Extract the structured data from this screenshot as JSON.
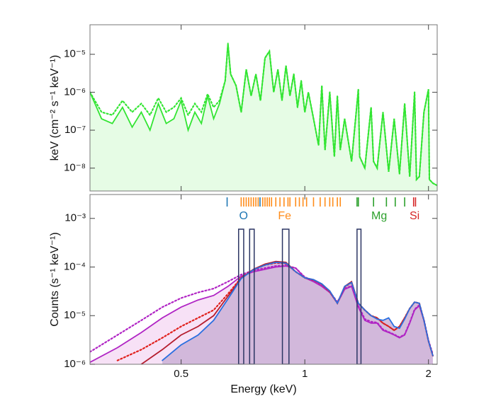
{
  "chart_data": [
    {
      "type": "line",
      "ylabel": "keV (cm⁻² s⁻¹ keV⁻¹)",
      "xscale": "log",
      "yscale": "log",
      "xlim": [
        0.3,
        2.1
      ],
      "ylim": [
        2.5e-09,
        6e-05
      ],
      "yticks": [
        {
          "value": 1e-08,
          "label": "10⁻⁸"
        },
        {
          "value": 1e-07,
          "label": "10⁻⁷"
        },
        {
          "value": 1e-06,
          "label": "10⁻⁶"
        },
        {
          "value": 1e-05,
          "label": "10⁻⁵"
        }
      ],
      "x": [
        0.3,
        0.32,
        0.34,
        0.36,
        0.38,
        0.4,
        0.42,
        0.44,
        0.46,
        0.48,
        0.5,
        0.52,
        0.54,
        0.56,
        0.58,
        0.6,
        0.62,
        0.64,
        0.65,
        0.66,
        0.68,
        0.7,
        0.72,
        0.74,
        0.76,
        0.78,
        0.8,
        0.82,
        0.84,
        0.86,
        0.88,
        0.9,
        0.92,
        0.94,
        0.96,
        0.98,
        1.0,
        1.02,
        1.05,
        1.08,
        1.1,
        1.12,
        1.15,
        1.18,
        1.2,
        1.22,
        1.25,
        1.3,
        1.35,
        1.36,
        1.4,
        1.45,
        1.47,
        1.5,
        1.55,
        1.6,
        1.65,
        1.7,
        1.75,
        1.8,
        1.85,
        1.87,
        1.9,
        1.95,
        2.0,
        2.01,
        2.05,
        2.1
      ],
      "series": [
        {
          "color": "#33e533",
          "style": "solid",
          "fill": "#e2fbe0",
          "values": [
            1e-06,
            2e-07,
            1.5e-07,
            4e-07,
            1.2e-07,
            3e-07,
            1e-07,
            5e-07,
            1.5e-07,
            2e-07,
            6e-07,
            1e-07,
            3e-07,
            1.5e-07,
            8e-07,
            2e-07,
            5e-07,
            2e-06,
            2e-05,
            3e-06,
            1.5e-06,
            3e-07,
            4e-06,
            8e-07,
            3e-06,
            6e-07,
            8e-06,
            1.2e-05,
            1e-06,
            4e-06,
            6e-07,
            5e-06,
            8e-07,
            3e-06,
            4e-07,
            2e-06,
            3e-07,
            1e-06,
            2e-07,
            4e-08,
            1.5e-06,
            3e-08,
            1e-06,
            2e-08,
            8e-07,
            3e-08,
            2e-07,
            1.5e-08,
            1.2e-06,
            2e-08,
            1e-08,
            4e-07,
            1.5e-08,
            1e-08,
            3e-07,
            8e-09,
            2e-07,
            7e-09,
            5e-07,
            6e-09,
            1e-06,
            5e-09,
            6e-09,
            3e-07,
            1.2e-06,
            5e-09,
            4e-09,
            3.5e-09
          ]
        },
        {
          "color": "#33e533",
          "style": "dotted",
          "values": [
            1e-06,
            3e-07,
            2.5e-07,
            6e-07,
            3e-07,
            5e-07,
            2.5e-07,
            7e-07,
            3e-07,
            4e-07,
            7e-07,
            2.5e-07,
            5e-07,
            3e-07,
            9e-07,
            4e-07,
            6e-07,
            2e-06,
            1.8e-05,
            3e-06,
            1.5e-06,
            3e-07,
            4e-06,
            8e-07,
            3e-06,
            6e-07,
            8e-06,
            1.2e-05,
            1e-06,
            4e-06,
            6e-07,
            5e-06,
            8e-07,
            3e-06,
            4e-07,
            2e-06,
            3e-07,
            1e-06,
            2e-07,
            4e-08,
            1.5e-06,
            3e-08,
            1e-06,
            2e-08,
            8e-07,
            3e-08,
            2e-07,
            1.5e-08,
            1.2e-06,
            2e-08,
            1e-08,
            4e-07,
            1.5e-08,
            1e-08,
            3e-07,
            8e-09,
            2e-07,
            7e-09,
            5e-07,
            6e-09,
            1e-06,
            5e-09,
            6e-09,
            3e-07,
            1.2e-06,
            5e-09,
            4e-09,
            3.5e-09
          ]
        }
      ]
    },
    {
      "type": "line",
      "xlabel": "Energy (keV)",
      "ylabel": "Counts (s⁻¹ keV⁻¹)",
      "xscale": "log",
      "yscale": "log",
      "xlim": [
        0.3,
        2.1
      ],
      "ylim": [
        1e-06,
        0.0031
      ],
      "xticks": [
        0.5,
        1,
        2
      ],
      "yticks": [
        {
          "value": 1e-06,
          "label": "10⁻⁶"
        },
        {
          "value": 1e-05,
          "label": "10⁻⁵"
        },
        {
          "value": 0.0001,
          "label": "10⁻⁴"
        },
        {
          "value": 0.001,
          "label": "10⁻³"
        }
      ],
      "x": [
        0.3,
        0.35,
        0.4,
        0.45,
        0.5,
        0.55,
        0.6,
        0.65,
        0.7,
        0.75,
        0.8,
        0.85,
        0.9,
        0.95,
        1.0,
        1.05,
        1.1,
        1.15,
        1.2,
        1.25,
        1.3,
        1.35,
        1.4,
        1.45,
        1.5,
        1.55,
        1.6,
        1.65,
        1.7,
        1.75,
        1.8,
        1.85,
        1.9,
        1.95,
        2.0,
        2.05
      ],
      "series": [
        {
          "color": "#b024c4",
          "style": "solid",
          "fill": "#f6dcf4",
          "values": [
            1.1e-06,
            2.2e-06,
            4.5e-06,
            9e-06,
            1.5e-05,
            2.1e-05,
            2.6e-05,
            4e-05,
            6.5e-05,
            8e-05,
            9e-05,
            0.0001,
            0.000105,
            9.5e-05,
            6e-05,
            5e-05,
            4e-05,
            3e-05,
            1.8e-05,
            3.5e-05,
            4e-05,
            1.5e-05,
            8e-06,
            7e-06,
            7e-06,
            5e-06,
            4.5e-06,
            4e-06,
            3.5e-06,
            4e-06,
            7e-06,
            1.3e-05,
            1.6e-05,
            8e-06,
            3e-06,
            1.5e-06
          ]
        },
        {
          "color": "#b024c4",
          "style": "dotted",
          "values": [
            1.8e-06,
            4e-06,
            8e-06,
            1.5e-05,
            2.3e-05,
            3e-05,
            3.6e-05,
            5e-05,
            7e-05,
            8.5e-05,
            9.5e-05,
            0.000105,
            0.000108,
            9.5e-05,
            6.2e-05,
            5.2e-05,
            4.2e-05,
            3.1e-05,
            1.9e-05,
            3.6e-05,
            4.1e-05,
            1.6e-05,
            8.5e-06,
            7.5e-06,
            7.2e-06,
            5.2e-06,
            4.6e-06,
            4.1e-06,
            3.6e-06,
            4.1e-06,
            7.2e-06,
            1.35e-05,
            1.65e-05,
            8.2e-06,
            3.1e-06,
            1.6e-06
          ]
        },
        {
          "color": "#b51d2e",
          "style": "solid",
          "values": [
            null,
            null,
            1e-06,
            2e-06,
            4e-06,
            6e-06,
            1e-05,
            2.5e-05,
            6e-05,
            9e-05,
            0.000115,
            0.00013,
            0.000125,
            8e-05,
            6e-05,
            5.5e-05,
            4.5e-05,
            3.2e-05,
            1.8e-05,
            4e-05,
            5e-05,
            1.8e-05,
            1.3e-05,
            1e-05,
            9e-06,
            7e-06,
            6e-06,
            5e-06,
            6e-06,
            9e-06,
            1.4e-05,
            1.9e-05,
            1.8e-05,
            8e-06,
            3e-06,
            1.5e-06
          ]
        },
        {
          "color": "#e0201c",
          "style": "dotted",
          "values": [
            null,
            1.2e-06,
            2e-06,
            3.5e-06,
            6e-06,
            9e-06,
            1.3e-05,
            2.8e-05,
            6e-05,
            8.8e-05,
            0.00011,
            0.000122,
            0.000118,
            8e-05,
            6e-05,
            5.4e-05,
            4.4e-05,
            3.1e-05,
            1.8e-05,
            3.9e-05,
            4.8e-05,
            1.8e-05,
            1.3e-05,
            1e-05,
            9e-06,
            7e-06,
            6e-06,
            5e-06,
            6e-06,
            9e-06,
            1.4e-05,
            1.9e-05,
            1.8e-05,
            8e-06,
            3e-06,
            1.5e-06
          ]
        },
        {
          "color": "#2a6fe0",
          "style": "solid",
          "fill": "#cbb0d6",
          "values": [
            null,
            null,
            null,
            1.2e-06,
            2.5e-06,
            4e-06,
            8e-06,
            2.2e-05,
            5.8e-05,
            8.8e-05,
            0.00011,
            0.000125,
            0.00012,
            8e-05,
            6e-05,
            5.5e-05,
            4.5e-05,
            3.2e-05,
            1.8e-05,
            4e-05,
            4.8e-05,
            1.8e-05,
            1.3e-05,
            1e-05,
            8.5e-06,
            8e-06,
            9e-06,
            6e-06,
            5.5e-06,
            8.5e-06,
            1.4e-05,
            1.9e-05,
            1.8e-05,
            8e-06,
            3e-06,
            1.5e-06
          ]
        }
      ],
      "boxes": {
        "color": "#2b3563",
        "lo": [
          0.69,
          0.734,
          0.882,
          1.34
        ],
        "hi": [
          0.71,
          0.753,
          0.915,
          1.37
        ],
        "values": [
          0.0006,
          0.0006,
          0.0006,
          0.0006
        ]
      },
      "line_markers": [
        {
          "name": "O",
          "color": "#1f77b4",
          "energies": [
            0.647,
            0.778
          ]
        },
        {
          "name": "Fe",
          "color": "#ff8c1a",
          "energies": [
            0.7,
            0.71,
            0.72,
            0.73,
            0.74,
            0.75,
            0.76,
            0.77,
            0.79,
            0.8,
            0.81,
            0.82,
            0.83,
            0.85,
            0.87,
            0.89,
            0.91,
            0.92,
            0.95,
            0.97,
            0.99,
            1.01,
            1.05,
            1.09,
            1.12,
            1.15,
            1.17,
            1.2,
            1.22
          ]
        },
        {
          "name": "Mg",
          "color": "#2ca02c",
          "energies": [
            1.34,
            1.35,
            1.47,
            1.58,
            1.66,
            1.75
          ]
        },
        {
          "name": "Si",
          "color": "#d62728",
          "energies": [
            1.84,
            1.86
          ]
        }
      ]
    }
  ]
}
